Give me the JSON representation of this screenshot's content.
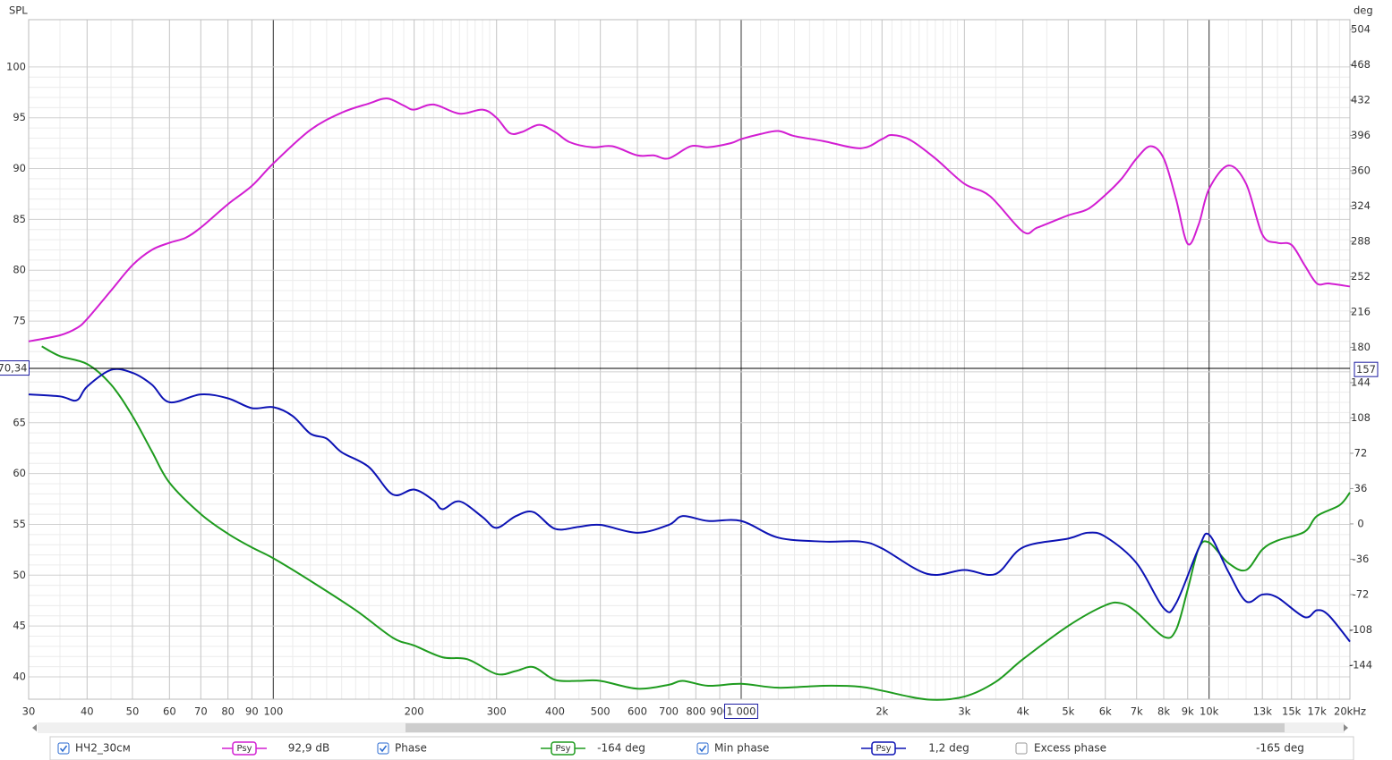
{
  "chart_data": {
    "type": "line",
    "y_label": "SPL",
    "y2_label": "deg",
    "xscale": "log",
    "xlim": [
      30,
      20000
    ],
    "ylim": [
      37.8,
      104.65
    ],
    "y2lim": [
      -178.7,
      514
    ],
    "grid": true,
    "xticks": [
      30,
      40,
      50,
      60,
      70,
      80,
      90,
      100,
      200,
      300,
      400,
      500,
      600,
      700,
      800,
      900,
      {
        "value": 1000,
        "label": "1 000"
      },
      {
        "value": 2000,
        "label": "2k"
      },
      {
        "value": 3000,
        "label": "3k"
      },
      {
        "value": 4000,
        "label": "4k"
      },
      {
        "value": 5000,
        "label": "5k"
      },
      {
        "value": 6000,
        "label": "6k"
      },
      {
        "value": 7000,
        "label": "7k"
      },
      {
        "value": 8000,
        "label": "8k"
      },
      {
        "value": 9000,
        "label": "9k"
      },
      {
        "value": 10000,
        "label": "10k"
      },
      {
        "value": 13000,
        "label": "13k"
      },
      {
        "value": 15000,
        "label": "15k"
      },
      {
        "value": 17000,
        "label": "17k"
      },
      {
        "value": 20000,
        "label": "20kHz"
      }
    ],
    "yticks": [
      40,
      45,
      50,
      55,
      60,
      65,
      70,
      75,
      80,
      85,
      90,
      95,
      100
    ],
    "y2ticks": [
      -144,
      -108,
      -72,
      -36,
      0,
      36,
      72,
      108,
      144,
      180,
      216,
      252,
      288,
      324,
      360,
      396,
      432,
      468,
      504
    ],
    "cursor": {
      "y": {
        "value": 70.34,
        "label": "70,34"
      },
      "y2": 157
    },
    "series": [
      {
        "name": "НЧ2_30см",
        "color": "#d21ed2",
        "checked": true,
        "smoothing": "Psy",
        "readout": "92,9 dB",
        "x": [
          30,
          35,
          38,
          40,
          45,
          50,
          55,
          60,
          65,
          70,
          80,
          90,
          100,
          120,
          140,
          160,
          175,
          190,
          200,
          220,
          250,
          280,
          300,
          320,
          340,
          370,
          400,
          430,
          480,
          530,
          600,
          650,
          700,
          780,
          850,
          950,
          1000,
          1100,
          1200,
          1300,
          1500,
          1800,
          2000,
          2100,
          2300,
          2600,
          3000,
          3400,
          4000,
          4300,
          5000,
          5500,
          6000,
          6500,
          7000,
          7500,
          8000,
          8500,
          9000,
          9500,
          10000,
          11000,
          12000,
          13000,
          14000,
          15000,
          16000,
          17000,
          18000,
          20000
        ],
        "values": [
          73.0,
          73.6,
          74.3,
          75.2,
          78.0,
          80.5,
          82.0,
          82.7,
          83.2,
          84.2,
          86.5,
          88.3,
          90.5,
          93.8,
          95.5,
          96.4,
          96.9,
          96.2,
          95.8,
          96.3,
          95.4,
          95.8,
          95.0,
          93.5,
          93.6,
          94.3,
          93.6,
          92.6,
          92.1,
          92.2,
          91.3,
          91.3,
          91.0,
          92.2,
          92.1,
          92.5,
          92.9,
          93.4,
          93.7,
          93.2,
          92.7,
          92.0,
          92.9,
          93.3,
          92.8,
          91.0,
          88.5,
          87.3,
          83.8,
          84.2,
          85.4,
          86.0,
          87.4,
          89.0,
          91.0,
          92.2,
          91.0,
          87.0,
          82.6,
          84.5,
          88.0,
          90.3,
          88.5,
          83.5,
          82.7,
          82.5,
          80.5,
          78.7,
          78.7,
          78.4
        ]
      },
      {
        "name": "Phase",
        "color": "#1e9b1e",
        "axis": "y2",
        "checked": true,
        "smoothing": "Psy",
        "readout": "-164 deg",
        "x": [
          32,
          35,
          40,
          45,
          50,
          55,
          60,
          70,
          80,
          90,
          100,
          120,
          150,
          180,
          200,
          230,
          260,
          300,
          330,
          360,
          400,
          450,
          500,
          600,
          700,
          750,
          850,
          1000,
          1200,
          1500,
          1800,
          2000,
          2500,
          3000,
          3500,
          4000,
          5000,
          6000,
          6500,
          7000,
          8000,
          8500,
          9000,
          9500,
          10000,
          11000,
          12000,
          13000,
          14000,
          16000,
          17000,
          19000,
          20000
        ],
        "values": [
          181,
          171,
          163,
          142,
          110,
          74,
          42,
          10,
          -10,
          -24,
          -35,
          -58,
          -88,
          -116,
          -124,
          -136,
          -138,
          -153,
          -150,
          -146,
          -159,
          -160,
          -160,
          -168,
          -164,
          -160,
          -165,
          -163,
          -167,
          -165,
          -166,
          -170,
          -179,
          -176,
          -161,
          -138,
          -104,
          -83,
          -81,
          -90,
          -115,
          -108,
          -67,
          -25,
          -19,
          -40,
          -47,
          -26,
          -17,
          -8,
          8,
          19,
          32
        ]
      },
      {
        "name": "Min phase",
        "color": "#0c12b4",
        "axis": "y2",
        "checked": true,
        "smoothing": "Psy",
        "readout": "1,2 deg",
        "x": [
          30,
          35,
          38,
          40,
          45,
          50,
          55,
          60,
          70,
          80,
          90,
          100,
          110,
          120,
          130,
          140,
          160,
          180,
          200,
          220,
          230,
          250,
          280,
          300,
          330,
          360,
          400,
          450,
          500,
          600,
          700,
          750,
          850,
          1000,
          1200,
          1500,
          1800,
          2000,
          2500,
          3000,
          3500,
          4000,
          5000,
          5500,
          6000,
          7000,
          8000,
          8500,
          9500,
          10000,
          11000,
          12000,
          13000,
          14000,
          16000,
          17000,
          18000,
          20000
        ],
        "values": [
          132,
          130,
          126,
          140,
          157,
          154,
          142,
          124,
          132,
          128,
          118,
          119,
          110,
          92,
          87,
          73,
          58,
          30,
          35,
          24,
          15,
          23,
          7,
          -4,
          8,
          12,
          -5,
          -3,
          -1,
          -9,
          -1,
          8,
          3,
          3,
          -14,
          -18,
          -18,
          -25,
          -51,
          -47,
          -51,
          -24,
          -15,
          -9,
          -13,
          -40,
          -86,
          -81,
          -25,
          -11,
          -49,
          -79,
          -72,
          -75,
          -95,
          -88,
          -93,
          -120
        ]
      }
    ],
    "extra_legend": {
      "name": "Excess phase",
      "checked": false,
      "readout": "-165 deg"
    }
  }
}
